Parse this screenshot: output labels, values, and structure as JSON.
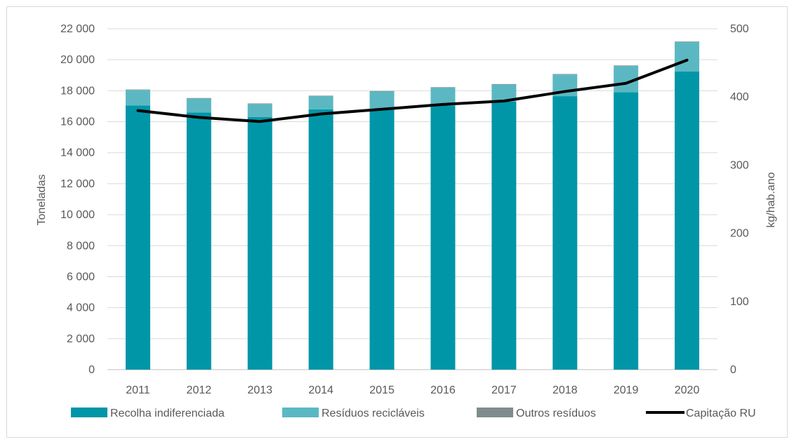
{
  "chart_data": {
    "type": "bar",
    "stacked": true,
    "categories": [
      "2011",
      "2012",
      "2013",
      "2014",
      "2015",
      "2016",
      "2017",
      "2018",
      "2019",
      "2020"
    ],
    "series": [
      {
        "name": "Recolha indiferenciada",
        "axis": "left",
        "color": "#0096a8",
        "values": [
          17050,
          16600,
          16300,
          16800,
          16850,
          17050,
          17300,
          17650,
          17900,
          19250
        ]
      },
      {
        "name": "Resíduos recicláveis",
        "axis": "left",
        "color": "#5bb8c2",
        "values": [
          1000,
          900,
          850,
          850,
          1100,
          1150,
          1100,
          1400,
          1700,
          1900
        ]
      },
      {
        "name": "Outros resíduos",
        "axis": "left",
        "color": "#7f8c8d",
        "values": [
          30,
          30,
          30,
          30,
          30,
          30,
          30,
          30,
          30,
          30
        ]
      },
      {
        "name": "Capitação RU",
        "axis": "right",
        "type": "line",
        "color": "#000000",
        "values": [
          380,
          370,
          364,
          375,
          382,
          389,
          394,
          408,
          420,
          454
        ]
      }
    ],
    "ylabel": "Toneladas",
    "y2label": "kg/hab.ano",
    "ylim": [
      0,
      22000
    ],
    "y2lim": [
      0,
      500
    ],
    "yticks": [
      {
        "v": 0,
        "t": "0"
      },
      {
        "v": 2000,
        "t": "2 000"
      },
      {
        "v": 4000,
        "t": "4 000"
      },
      {
        "v": 6000,
        "t": "6 000"
      },
      {
        "v": 8000,
        "t": "8 000"
      },
      {
        "v": 10000,
        "t": "10 000"
      },
      {
        "v": 12000,
        "t": "12 000"
      },
      {
        "v": 14000,
        "t": "14 000"
      },
      {
        "v": 16000,
        "t": "16 000"
      },
      {
        "v": 18000,
        "t": "18 000"
      },
      {
        "v": 20000,
        "t": "20 000"
      },
      {
        "v": 22000,
        "t": "22 000"
      }
    ],
    "y2ticks": [
      {
        "v": 0,
        "t": "0"
      },
      {
        "v": 100,
        "t": "100"
      },
      {
        "v": 200,
        "t": "200"
      },
      {
        "v": 300,
        "t": "300"
      },
      {
        "v": 400,
        "t": "400"
      },
      {
        "v": 500,
        "t": "500"
      }
    ],
    "grid": true,
    "legend": "bottom"
  }
}
